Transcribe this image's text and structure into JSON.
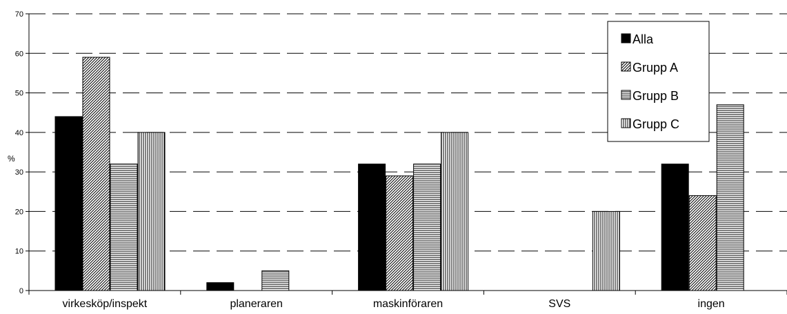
{
  "chart_data": {
    "type": "bar",
    "title": "",
    "xlabel": "",
    "ylabel": "%",
    "ylim": [
      0,
      70
    ],
    "yticks": [
      0,
      10,
      20,
      30,
      40,
      50,
      60,
      70
    ],
    "grid": "dashed horizontal",
    "legend_position": "top-right",
    "categories": [
      "virkesköp/inspekt",
      "planeraren",
      "maskinföraren",
      "SVS",
      "ingen"
    ],
    "series": [
      {
        "name": "Alla",
        "pattern": "solid",
        "values": [
          44,
          2,
          32,
          0,
          32
        ]
      },
      {
        "name": "Grupp A",
        "pattern": "diagonal",
        "values": [
          59,
          0,
          29,
          0,
          24
        ]
      },
      {
        "name": "Grupp B",
        "pattern": "horizontal",
        "values": [
          32,
          5,
          32,
          0,
          47
        ]
      },
      {
        "name": "Grupp C",
        "pattern": "vertical",
        "values": [
          40,
          0,
          40,
          20,
          0
        ]
      }
    ]
  },
  "colors": {
    "bar_fill": "#000000",
    "bar_stroke": "#000000",
    "background": "#ffffff"
  }
}
